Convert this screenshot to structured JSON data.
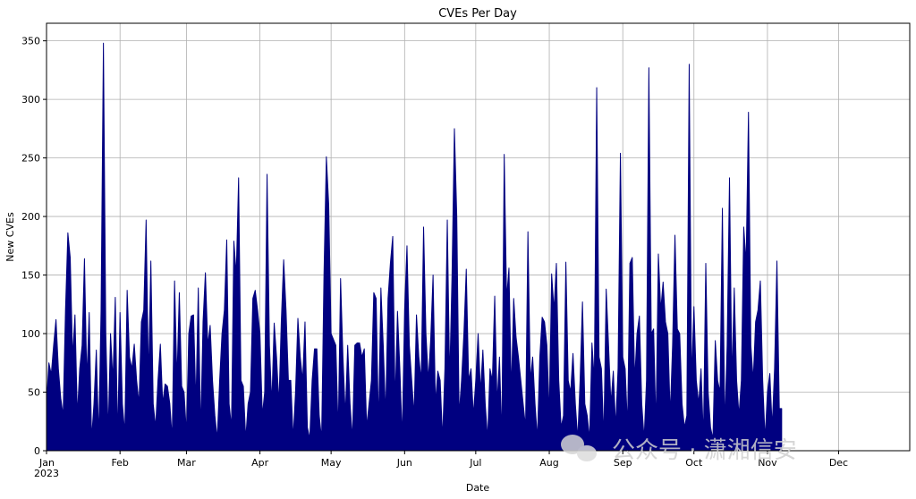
{
  "chart_data": {
    "type": "area",
    "title": "CVEs Per Day",
    "xlabel": "Date",
    "ylabel": "New CVEs",
    "ylim": [
      0,
      365
    ],
    "xlim": [
      0,
      364
    ],
    "yticks": [
      0,
      50,
      100,
      150,
      200,
      250,
      300,
      350
    ],
    "xticks": [
      {
        "day": 0,
        "label": "Jan",
        "sublabel": "2023"
      },
      {
        "day": 31,
        "label": "Feb"
      },
      {
        "day": 59,
        "label": "Mar"
      },
      {
        "day": 90,
        "label": "Apr"
      },
      {
        "day": 120,
        "label": "May"
      },
      {
        "day": 151,
        "label": "Jun"
      },
      {
        "day": 181,
        "label": "Jul"
      },
      {
        "day": 212,
        "label": "Aug"
      },
      {
        "day": 243,
        "label": "Sep"
      },
      {
        "day": 273,
        "label": "Oct"
      },
      {
        "day": 304,
        "label": "Nov"
      },
      {
        "day": 334,
        "label": "Dec"
      }
    ],
    "grid": true,
    "fill_color": "#000080",
    "points": [
      [
        0,
        40
      ],
      [
        1,
        75
      ],
      [
        2,
        65
      ],
      [
        3,
        90
      ],
      [
        4,
        112
      ],
      [
        5,
        70
      ],
      [
        6,
        45
      ],
      [
        7,
        30
      ],
      [
        8,
        120
      ],
      [
        9,
        186
      ],
      [
        10,
        165
      ],
      [
        11,
        80
      ],
      [
        12,
        116
      ],
      [
        13,
        30
      ],
      [
        14,
        70
      ],
      [
        15,
        90
      ],
      [
        16,
        164
      ],
      [
        17,
        60
      ],
      [
        18,
        118
      ],
      [
        19,
        10
      ],
      [
        20,
        40
      ],
      [
        21,
        86
      ],
      [
        22,
        10
      ],
      [
        23,
        120
      ],
      [
        24,
        348
      ],
      [
        25,
        100
      ],
      [
        26,
        15
      ],
      [
        27,
        100
      ],
      [
        28,
        60
      ],
      [
        29,
        131
      ],
      [
        30,
        10
      ],
      [
        31,
        118
      ],
      [
        32,
        40
      ],
      [
        33,
        15
      ],
      [
        34,
        137
      ],
      [
        35,
        80
      ],
      [
        36,
        70
      ],
      [
        37,
        91
      ],
      [
        38,
        60
      ],
      [
        39,
        40
      ],
      [
        40,
        110
      ],
      [
        41,
        120
      ],
      [
        42,
        197
      ],
      [
        43,
        60
      ],
      [
        44,
        162
      ],
      [
        45,
        40
      ],
      [
        46,
        20
      ],
      [
        47,
        60
      ],
      [
        48,
        91
      ],
      [
        49,
        40
      ],
      [
        50,
        57
      ],
      [
        51,
        55
      ],
      [
        52,
        40
      ],
      [
        53,
        10
      ],
      [
        54,
        145
      ],
      [
        55,
        60
      ],
      [
        56,
        135
      ],
      [
        57,
        55
      ],
      [
        58,
        50
      ],
      [
        59,
        15
      ],
      [
        60,
        100
      ],
      [
        61,
        115
      ],
      [
        62,
        116
      ],
      [
        63,
        40
      ],
      [
        64,
        139
      ],
      [
        65,
        15
      ],
      [
        66,
        110
      ],
      [
        67,
        152
      ],
      [
        68,
        90
      ],
      [
        69,
        107
      ],
      [
        70,
        60
      ],
      [
        71,
        30
      ],
      [
        72,
        10
      ],
      [
        73,
        60
      ],
      [
        74,
        100
      ],
      [
        75,
        120
      ],
      [
        76,
        180
      ],
      [
        77,
        40
      ],
      [
        78,
        20
      ],
      [
        79,
        179
      ],
      [
        80,
        150
      ],
      [
        81,
        233
      ],
      [
        82,
        60
      ],
      [
        83,
        55
      ],
      [
        84,
        10
      ],
      [
        85,
        40
      ],
      [
        86,
        50
      ],
      [
        87,
        130
      ],
      [
        88,
        137
      ],
      [
        89,
        120
      ],
      [
        90,
        100
      ],
      [
        91,
        30
      ],
      [
        92,
        50
      ],
      [
        93,
        236
      ],
      [
        94,
        90
      ],
      [
        95,
        40
      ],
      [
        96,
        109
      ],
      [
        97,
        80
      ],
      [
        98,
        40
      ],
      [
        99,
        110
      ],
      [
        100,
        163
      ],
      [
        101,
        120
      ],
      [
        102,
        60
      ],
      [
        103,
        60
      ],
      [
        104,
        10
      ],
      [
        105,
        50
      ],
      [
        106,
        113
      ],
      [
        107,
        80
      ],
      [
        108,
        60
      ],
      [
        109,
        110
      ],
      [
        110,
        20
      ],
      [
        111,
        10
      ],
      [
        112,
        60
      ],
      [
        113,
        87
      ],
      [
        114,
        87
      ],
      [
        115,
        30
      ],
      [
        116,
        10
      ],
      [
        117,
        150
      ],
      [
        118,
        251
      ],
      [
        119,
        210
      ],
      [
        120,
        100
      ],
      [
        121,
        95
      ],
      [
        122,
        90
      ],
      [
        123,
        15
      ],
      [
        124,
        147
      ],
      [
        125,
        80
      ],
      [
        126,
        30
      ],
      [
        127,
        90
      ],
      [
        128,
        40
      ],
      [
        129,
        10
      ],
      [
        130,
        90
      ],
      [
        131,
        92
      ],
      [
        132,
        92
      ],
      [
        133,
        80
      ],
      [
        134,
        87
      ],
      [
        135,
        20
      ],
      [
        136,
        40
      ],
      [
        137,
        60
      ],
      [
        138,
        135
      ],
      [
        139,
        130
      ],
      [
        140,
        20
      ],
      [
        141,
        139
      ],
      [
        142,
        90
      ],
      [
        143,
        30
      ],
      [
        144,
        130
      ],
      [
        145,
        160
      ],
      [
        146,
        183
      ],
      [
        147,
        40
      ],
      [
        148,
        119
      ],
      [
        149,
        70
      ],
      [
        150,
        10
      ],
      [
        151,
        120
      ],
      [
        152,
        175
      ],
      [
        153,
        90
      ],
      [
        154,
        60
      ],
      [
        155,
        30
      ],
      [
        156,
        116
      ],
      [
        157,
        80
      ],
      [
        158,
        60
      ],
      [
        159,
        191
      ],
      [
        160,
        100
      ],
      [
        161,
        60
      ],
      [
        162,
        95
      ],
      [
        163,
        150
      ],
      [
        164,
        40
      ],
      [
        165,
        68
      ],
      [
        166,
        60
      ],
      [
        167,
        10
      ],
      [
        168,
        70
      ],
      [
        169,
        197
      ],
      [
        170,
        60
      ],
      [
        171,
        150
      ],
      [
        172,
        275
      ],
      [
        173,
        200
      ],
      [
        174,
        30
      ],
      [
        175,
        60
      ],
      [
        176,
        100
      ],
      [
        177,
        155
      ],
      [
        178,
        60
      ],
      [
        179,
        70
      ],
      [
        180,
        30
      ],
      [
        181,
        60
      ],
      [
        182,
        100
      ],
      [
        183,
        50
      ],
      [
        184,
        86
      ],
      [
        185,
        40
      ],
      [
        186,
        10
      ],
      [
        187,
        70
      ],
      [
        188,
        60
      ],
      [
        189,
        132
      ],
      [
        190,
        40
      ],
      [
        191,
        80
      ],
      [
        192,
        10
      ],
      [
        193,
        253
      ],
      [
        194,
        130
      ],
      [
        195,
        156
      ],
      [
        196,
        50
      ],
      [
        197,
        130
      ],
      [
        198,
        97
      ],
      [
        199,
        80
      ],
      [
        200,
        60
      ],
      [
        201,
        40
      ],
      [
        202,
        20
      ],
      [
        203,
        187
      ],
      [
        204,
        60
      ],
      [
        205,
        80
      ],
      [
        206,
        40
      ],
      [
        207,
        10
      ],
      [
        208,
        80
      ],
      [
        209,
        114
      ],
      [
        210,
        110
      ],
      [
        211,
        90
      ],
      [
        212,
        30
      ],
      [
        213,
        151
      ],
      [
        214,
        120
      ],
      [
        215,
        160
      ],
      [
        216,
        60
      ],
      [
        217,
        20
      ],
      [
        218,
        30
      ],
      [
        219,
        161
      ],
      [
        220,
        60
      ],
      [
        221,
        50
      ],
      [
        222,
        83
      ],
      [
        223,
        40
      ],
      [
        224,
        10
      ],
      [
        225,
        60
      ],
      [
        226,
        127
      ],
      [
        227,
        40
      ],
      [
        228,
        30
      ],
      [
        229,
        10
      ],
      [
        230,
        92
      ],
      [
        231,
        60
      ],
      [
        232,
        310
      ],
      [
        233,
        80
      ],
      [
        234,
        70
      ],
      [
        235,
        10
      ],
      [
        236,
        138
      ],
      [
        237,
        90
      ],
      [
        238,
        40
      ],
      [
        239,
        68
      ],
      [
        240,
        20
      ],
      [
        241,
        70
      ],
      [
        242,
        254
      ],
      [
        243,
        80
      ],
      [
        244,
        70
      ],
      [
        245,
        20
      ],
      [
        246,
        160
      ],
      [
        247,
        165
      ],
      [
        248,
        60
      ],
      [
        249,
        100
      ],
      [
        250,
        115
      ],
      [
        251,
        40
      ],
      [
        252,
        10
      ],
      [
        253,
        60
      ],
      [
        254,
        327
      ],
      [
        255,
        100
      ],
      [
        256,
        104
      ],
      [
        257,
        20
      ],
      [
        258,
        168
      ],
      [
        259,
        120
      ],
      [
        260,
        144
      ],
      [
        261,
        110
      ],
      [
        262,
        100
      ],
      [
        263,
        30
      ],
      [
        264,
        90
      ],
      [
        265,
        184
      ],
      [
        266,
        104
      ],
      [
        267,
        100
      ],
      [
        268,
        40
      ],
      [
        269,
        20
      ],
      [
        270,
        30
      ],
      [
        271,
        330
      ],
      [
        272,
        60
      ],
      [
        273,
        123
      ],
      [
        274,
        60
      ],
      [
        275,
        40
      ],
      [
        276,
        70
      ],
      [
        277,
        10
      ],
      [
        278,
        160
      ],
      [
        279,
        50
      ],
      [
        280,
        20
      ],
      [
        281,
        10
      ],
      [
        282,
        94
      ],
      [
        283,
        60
      ],
      [
        284,
        50
      ],
      [
        285,
        207
      ],
      [
        286,
        20
      ],
      [
        287,
        90
      ],
      [
        288,
        233
      ],
      [
        289,
        60
      ],
      [
        290,
        139
      ],
      [
        291,
        60
      ],
      [
        292,
        30
      ],
      [
        293,
        60
      ],
      [
        294,
        191
      ],
      [
        295,
        160
      ],
      [
        296,
        289
      ],
      [
        297,
        90
      ],
      [
        298,
        60
      ],
      [
        299,
        110
      ],
      [
        300,
        120
      ],
      [
        301,
        145
      ],
      [
        302,
        60
      ],
      [
        303,
        10
      ],
      [
        304,
        50
      ],
      [
        305,
        66
      ],
      [
        306,
        20
      ],
      [
        307,
        70
      ],
      [
        308,
        162
      ],
      [
        309,
        36
      ],
      [
        310,
        36
      ]
    ]
  }
}
